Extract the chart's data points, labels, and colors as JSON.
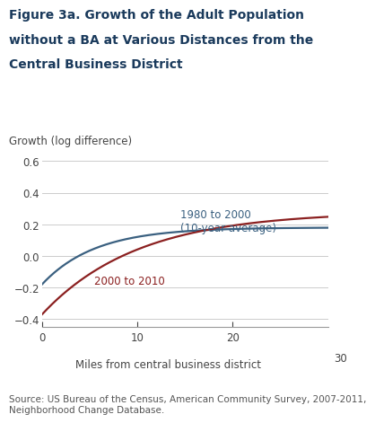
{
  "title_line1": "Figure 3a. Growth of the Adult Population",
  "title_line2": "without a BA at Various Distances from the",
  "title_line3": "Central Business District",
  "ylabel": "Growth (log difference)",
  "xlabel": "Miles from central business district",
  "x_max_label": "30",
  "xlim": [
    0,
    30
  ],
  "ylim": [
    -0.45,
    0.65
  ],
  "yticks": [
    -0.4,
    -0.2,
    0,
    0.2,
    0.4,
    0.6
  ],
  "xticks": [
    0,
    10,
    20
  ],
  "line1_color": "#3a6080",
  "line2_color": "#8b2020",
  "line1_label": "1980 to 2000\n(10-year average)",
  "line2_label": "2000 to 2010",
  "source_text": "Source: US Bureau of the Census, American Community Survey, 2007-2011,\nNeighborhood Change Database.",
  "background_color": "#ffffff",
  "title_color": "#1a3a5c",
  "annotation1_color": "#3a6080",
  "annotation2_color": "#8b2020",
  "grid_color": "#cccccc",
  "spine_color": "#999999",
  "tick_color": "#444444"
}
